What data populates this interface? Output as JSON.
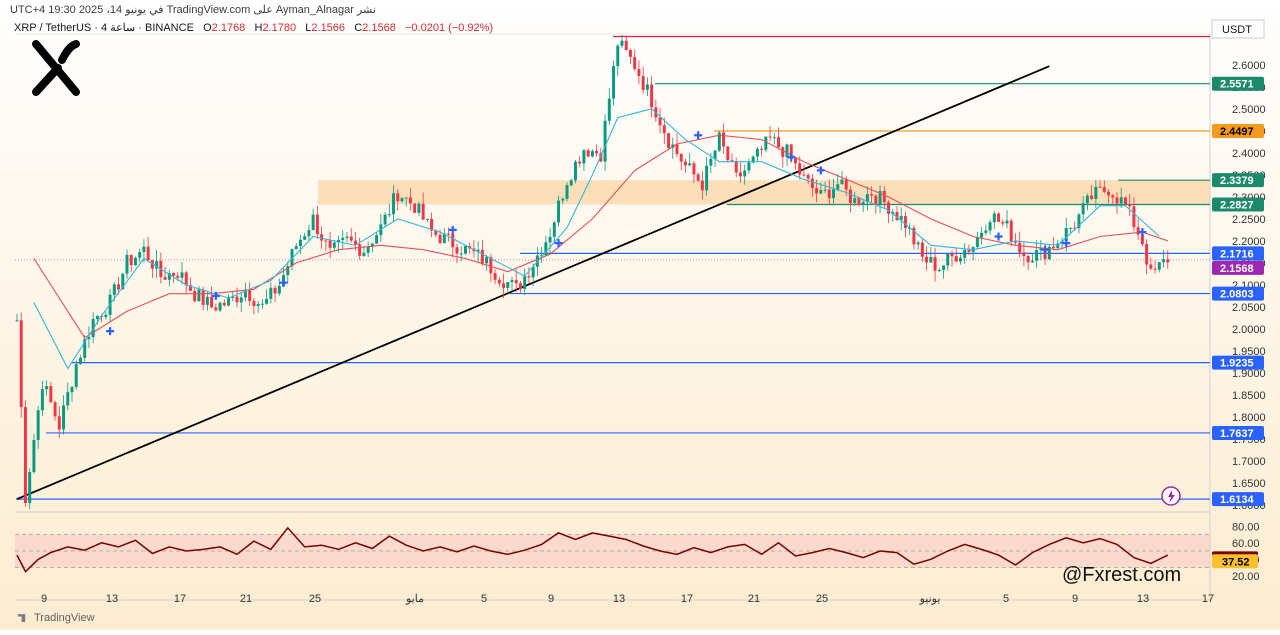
{
  "header": {
    "published_line": "نشر Ayman_Alnagar على TradingView.com في يونيو 14، 2025 19:30 UTC+4",
    "symbol": "XRP / TetherUS · 4 ساعة · BINANCE",
    "open_label": "O",
    "open": "2.1768",
    "high_label": "H",
    "high": "2.1780",
    "low_label": "L",
    "low": "2.1566",
    "close_label": "C",
    "close": "2.1568",
    "change": "−0.0201 (−0.92%)"
  },
  "footer": {
    "brand": "TradingView",
    "handle": "@Fxrest.com"
  },
  "chart_data": [
    {
      "type": "candlestick",
      "symbol": "XRP / TetherUS",
      "timeframe": "4 ساعة",
      "exchange": "BINANCE",
      "currency_label": "USDT",
      "y_range": [
        1.6,
        2.67
      ],
      "y_ticks": [
        "2.6000",
        "2.5500",
        "2.5000",
        "2.4500",
        "2.4000",
        "2.3500",
        "2.3000",
        "2.2500",
        "2.2000",
        "2.1500",
        "2.1000",
        "2.0500",
        "2.0000",
        "1.9500",
        "1.9000",
        "1.8500",
        "1.8000",
        "1.7500",
        "1.7000",
        "1.6500",
        "1.6000"
      ],
      "x_ticks": [
        "9",
        "13",
        "17",
        "21",
        "25",
        "مايو",
        "5",
        "9",
        "13",
        "17",
        "21",
        "25",
        "يونيو",
        "5",
        "9",
        "13",
        "17"
      ],
      "price_levels": [
        {
          "label": "2.5571",
          "value": 2.5571,
          "color": "#1b8a6b"
        },
        {
          "label": "2.4497",
          "value": 2.4497,
          "color": "#f59a1d"
        },
        {
          "label": "2.3379",
          "value": 2.3379,
          "color": "#1b8a6b"
        },
        {
          "label": "2.2827",
          "value": 2.2827,
          "color": "#1b8a6b"
        },
        {
          "label": "2.1716",
          "value": 2.1716,
          "color": "#2962ff"
        },
        {
          "label": "2.0803",
          "value": 2.0803,
          "color": "#2962ff"
        },
        {
          "label": "1.9235",
          "value": 1.9235,
          "color": "#2962ff"
        },
        {
          "label": "1.7637",
          "value": 1.7637,
          "color": "#2962ff"
        },
        {
          "label": "1.6134",
          "value": 1.6134,
          "color": "#2962ff"
        }
      ],
      "high_line": {
        "value": 2.6644,
        "color": "#e0203b"
      },
      "last_price": {
        "label": "2.1568",
        "value": 2.1568,
        "color": "#9c27b0"
      },
      "supply_zone": [
        2.2827,
        2.3379
      ],
      "trendline": [
        {
          "bar": 0,
          "price": 1.6134
        },
        {
          "bar": 244,
          "price": 2.5968
        }
      ],
      "path": [
        [
          0,
          2.02
        ],
        [
          2,
          1.62
        ],
        [
          6,
          1.88
        ],
        [
          10,
          1.78
        ],
        [
          14,
          1.92
        ],
        [
          18,
          2.02
        ],
        [
          22,
          2.06
        ],
        [
          26,
          2.15
        ],
        [
          30,
          2.18
        ],
        [
          34,
          2.12
        ],
        [
          38,
          2.13
        ],
        [
          42,
          2.08
        ],
        [
          46,
          2.05
        ],
        [
          50,
          2.06
        ],
        [
          54,
          2.09
        ],
        [
          58,
          2.05
        ],
        [
          62,
          2.1
        ],
        [
          66,
          2.19
        ],
        [
          70,
          2.25
        ],
        [
          74,
          2.17
        ],
        [
          78,
          2.2
        ],
        [
          82,
          2.18
        ],
        [
          86,
          2.23
        ],
        [
          90,
          2.31
        ],
        [
          94,
          2.28
        ],
        [
          98,
          2.22
        ],
        [
          102,
          2.2
        ],
        [
          106,
          2.18
        ],
        [
          110,
          2.16
        ],
        [
          114,
          2.12
        ],
        [
          118,
          2.09
        ],
        [
          122,
          2.15
        ],
        [
          126,
          2.22
        ],
        [
          130,
          2.34
        ],
        [
          134,
          2.41
        ],
        [
          138,
          2.4
        ],
        [
          142,
          2.65
        ],
        [
          146,
          2.6
        ],
        [
          150,
          2.52
        ],
        [
          154,
          2.43
        ],
        [
          158,
          2.37
        ],
        [
          162,
          2.33
        ],
        [
          166,
          2.43
        ],
        [
          170,
          2.34
        ],
        [
          174,
          2.38
        ],
        [
          178,
          2.43
        ],
        [
          182,
          2.4
        ],
        [
          186,
          2.34
        ],
        [
          190,
          2.3
        ],
        [
          194,
          2.33
        ],
        [
          198,
          2.29
        ],
        [
          202,
          2.31
        ],
        [
          206,
          2.28
        ],
        [
          210,
          2.24
        ],
        [
          214,
          2.16
        ],
        [
          218,
          2.14
        ],
        [
          222,
          2.17
        ],
        [
          226,
          2.19
        ],
        [
          230,
          2.26
        ],
        [
          234,
          2.23
        ],
        [
          238,
          2.17
        ],
        [
          242,
          2.17
        ],
        [
          246,
          2.2
        ],
        [
          250,
          2.24
        ],
        [
          254,
          2.3
        ],
        [
          258,
          2.32
        ],
        [
          262,
          2.28
        ],
        [
          266,
          2.2
        ],
        [
          268,
          2.12
        ],
        [
          272,
          2.16
        ]
      ],
      "ema_fast": [
        [
          4,
          2.06
        ],
        [
          12,
          1.91
        ],
        [
          20,
          2.03
        ],
        [
          30,
          2.16
        ],
        [
          40,
          2.1
        ],
        [
          50,
          2.07
        ],
        [
          60,
          2.11
        ],
        [
          70,
          2.21
        ],
        [
          80,
          2.19
        ],
        [
          90,
          2.25
        ],
        [
          100,
          2.22
        ],
        [
          110,
          2.17
        ],
        [
          120,
          2.12
        ],
        [
          130,
          2.23
        ],
        [
          136,
          2.35
        ],
        [
          142,
          2.48
        ],
        [
          150,
          2.5
        ],
        [
          158,
          2.43
        ],
        [
          166,
          2.38
        ],
        [
          176,
          2.38
        ],
        [
          186,
          2.34
        ],
        [
          196,
          2.31
        ],
        [
          206,
          2.27
        ],
        [
          216,
          2.19
        ],
        [
          226,
          2.18
        ],
        [
          236,
          2.2
        ],
        [
          246,
          2.19
        ],
        [
          256,
          2.28
        ],
        [
          262,
          2.28
        ],
        [
          270,
          2.21
        ]
      ],
      "ema_slow": [
        [
          4,
          2.16
        ],
        [
          16,
          1.98
        ],
        [
          26,
          2.04
        ],
        [
          36,
          2.08
        ],
        [
          46,
          2.08
        ],
        [
          56,
          2.09
        ],
        [
          66,
          2.15
        ],
        [
          76,
          2.18
        ],
        [
          86,
          2.19
        ],
        [
          96,
          2.18
        ],
        [
          106,
          2.16
        ],
        [
          116,
          2.13
        ],
        [
          126,
          2.17
        ],
        [
          136,
          2.25
        ],
        [
          146,
          2.36
        ],
        [
          156,
          2.42
        ],
        [
          166,
          2.44
        ],
        [
          176,
          2.43
        ],
        [
          186,
          2.38
        ],
        [
          196,
          2.34
        ],
        [
          206,
          2.3
        ],
        [
          216,
          2.25
        ],
        [
          226,
          2.21
        ],
        [
          236,
          2.19
        ],
        [
          246,
          2.18
        ],
        [
          256,
          2.21
        ],
        [
          266,
          2.22
        ],
        [
          272,
          2.2
        ]
      ],
      "markers": [
        {
          "bar": 22,
          "price": 1.995
        },
        {
          "bar": 47,
          "price": 2.075
        },
        {
          "bar": 63,
          "price": 2.105
        },
        {
          "bar": 103,
          "price": 2.225
        },
        {
          "bar": 128,
          "price": 2.195
        },
        {
          "bar": 161,
          "price": 2.44
        },
        {
          "bar": 183,
          "price": 2.39
        },
        {
          "bar": 190,
          "price": 2.36
        },
        {
          "bar": 232,
          "price": 2.21
        },
        {
          "bar": 243,
          "price": 2.18
        },
        {
          "bar": 248,
          "price": 2.195
        },
        {
          "bar": 266,
          "price": 2.22
        }
      ]
    },
    {
      "type": "line",
      "name": "RSI",
      "y_range": [
        10,
        90
      ],
      "y_ticks": [
        "80.00",
        "60.00",
        "40.00",
        "20.00"
      ],
      "band": [
        30,
        70
      ],
      "mid": 50,
      "values_labels": {
        "current": "41.06",
        "ma": "37.52"
      },
      "colors": {
        "rsi": "#7a0000",
        "current": "#7a0000",
        "ma": "#fbc02d"
      },
      "values": [
        [
          0,
          45
        ],
        [
          2,
          25
        ],
        [
          5,
          40
        ],
        [
          8,
          48
        ],
        [
          12,
          55
        ],
        [
          16,
          51
        ],
        [
          20,
          60
        ],
        [
          24,
          55
        ],
        [
          28,
          63
        ],
        [
          32,
          47
        ],
        [
          36,
          55
        ],
        [
          40,
          50
        ],
        [
          44,
          52
        ],
        [
          48,
          55
        ],
        [
          52,
          46
        ],
        [
          56,
          62
        ],
        [
          60,
          52
        ],
        [
          64,
          78
        ],
        [
          68,
          55
        ],
        [
          72,
          57
        ],
        [
          76,
          52
        ],
        [
          80,
          60
        ],
        [
          84,
          53
        ],
        [
          88,
          68
        ],
        [
          92,
          57
        ],
        [
          96,
          50
        ],
        [
          100,
          55
        ],
        [
          104,
          49
        ],
        [
          108,
          56
        ],
        [
          112,
          50
        ],
        [
          116,
          46
        ],
        [
          120,
          51
        ],
        [
          124,
          58
        ],
        [
          128,
          72
        ],
        [
          132,
          64
        ],
        [
          136,
          72
        ],
        [
          140,
          68
        ],
        [
          144,
          64
        ],
        [
          148,
          56
        ],
        [
          152,
          50
        ],
        [
          156,
          46
        ],
        [
          160,
          54
        ],
        [
          164,
          48
        ],
        [
          168,
          55
        ],
        [
          172,
          58
        ],
        [
          176,
          46
        ],
        [
          180,
          60
        ],
        [
          184,
          44
        ],
        [
          188,
          48
        ],
        [
          192,
          53
        ],
        [
          196,
          48
        ],
        [
          200,
          42
        ],
        [
          204,
          50
        ],
        [
          208,
          48
        ],
        [
          212,
          34
        ],
        [
          216,
          40
        ],
        [
          220,
          50
        ],
        [
          224,
          58
        ],
        [
          228,
          52
        ],
        [
          232,
          45
        ],
        [
          236,
          33
        ],
        [
          240,
          48
        ],
        [
          244,
          58
        ],
        [
          248,
          66
        ],
        [
          252,
          60
        ],
        [
          256,
          65
        ],
        [
          260,
          58
        ],
        [
          264,
          42
        ],
        [
          268,
          35
        ],
        [
          272,
          45
        ]
      ]
    }
  ]
}
